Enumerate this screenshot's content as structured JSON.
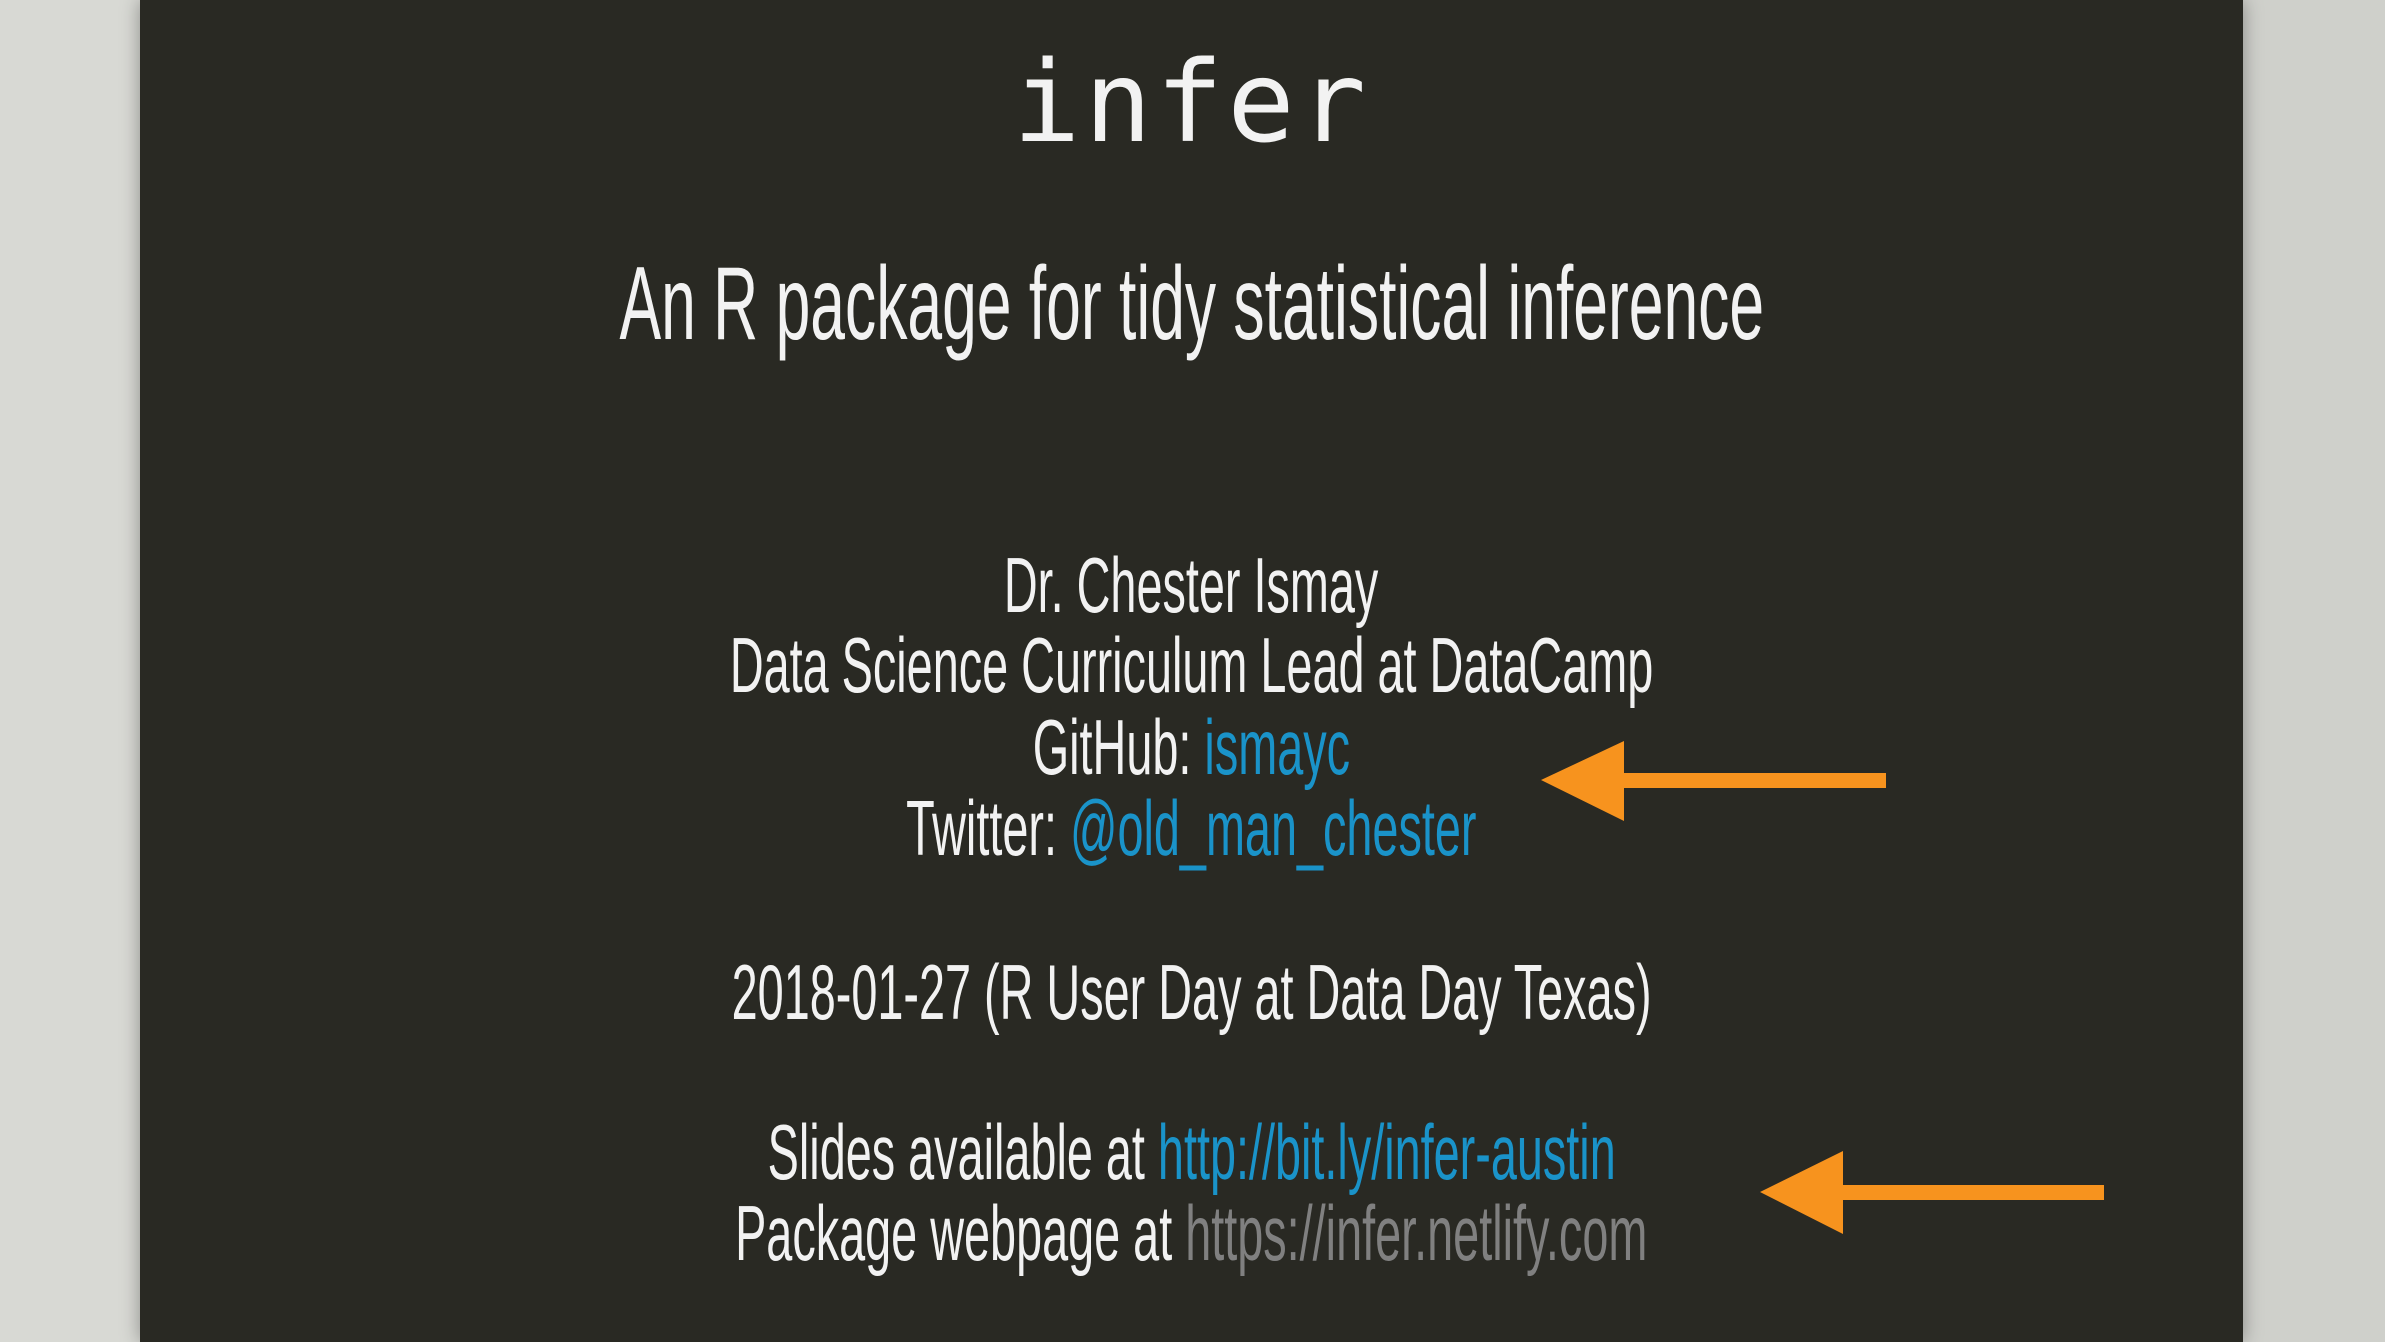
{
  "slide": {
    "title": "infer",
    "subtitle": "An R package for tidy statistical inference",
    "author": {
      "name": "Dr. Chester Ismay",
      "role": "Data Science Curriculum Lead at DataCamp",
      "github_label": "GitHub:",
      "github_handle": "ismayc",
      "twitter_label": "Twitter:",
      "twitter_handle": "@old_man_chester"
    },
    "date_line": "2018-01-27 (R User Day at Data Day Texas)",
    "slides_label": "Slides available at",
    "slides_url": "http://bit.ly/infer-austin",
    "webpage_label": "Package webpage at",
    "webpage_url": "https://infer.netlify.com"
  },
  "annotations": {
    "arrow_color": "#f7931e",
    "arrows": [
      {
        "icon": "arrow-left-icon",
        "points_to": "github"
      },
      {
        "icon": "arrow-left-icon",
        "points_to": "slides-url"
      }
    ]
  },
  "colors": {
    "background": "#292923",
    "text": "#f2f2f2",
    "link": "#1a93c9",
    "muted_link": "#808080"
  }
}
